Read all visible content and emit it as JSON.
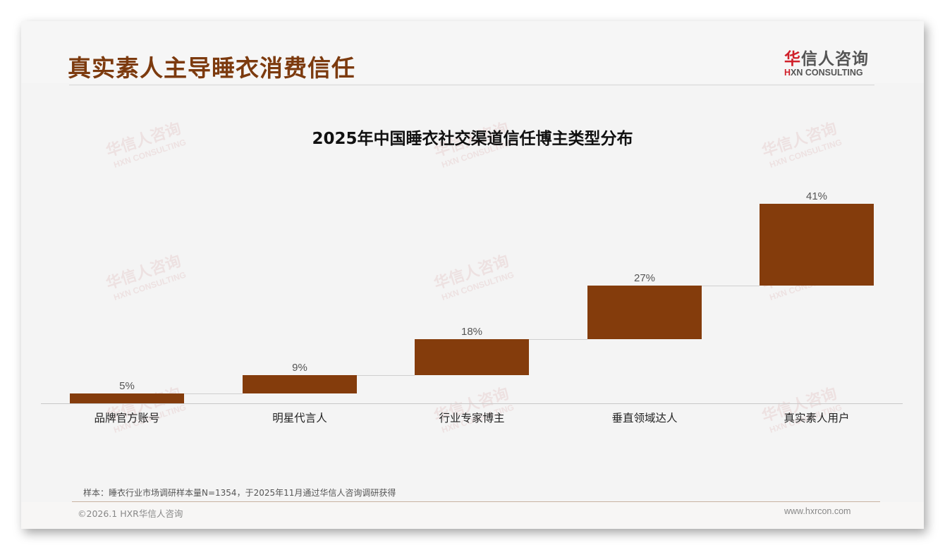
{
  "header": {
    "title": "真实素人主导睡衣消费信任",
    "logo_cn_first": "华",
    "logo_cn_rest": "信人咨询",
    "logo_en_first": "H",
    "logo_en_rest": "XN CONSULTING"
  },
  "watermark": {
    "cn": "华信人咨询",
    "en": "HXN CONSULTING"
  },
  "chart_data": {
    "type": "bar",
    "subtype": "waterfall",
    "title": "2025年中国睡衣社交渠道信任博主类型分布",
    "categories": [
      "品牌官方账号",
      "明星代言人",
      "行业专家博主",
      "垂直领域达人",
      "真实素人用户"
    ],
    "values": [
      5,
      9,
      18,
      27,
      41
    ],
    "value_labels": [
      "5%",
      "9%",
      "18%",
      "27%",
      "41%"
    ],
    "cumulative_start": [
      0,
      5,
      14,
      32,
      59
    ],
    "cumulative_end": [
      5,
      14,
      32,
      59,
      100
    ],
    "xlabel": "",
    "ylabel": "",
    "ylim": [
      0,
      100
    ],
    "grid": false,
    "legend": "none",
    "bar_color": "#843c0c",
    "connector_lines": true
  },
  "footer": {
    "note": "样本：睡衣行业市场调研样本量N=1354，于2025年11月通过华信人咨询调研获得",
    "copyright": "©2026.1 HXR华信人咨询",
    "url": "www.hxrcon.com"
  }
}
